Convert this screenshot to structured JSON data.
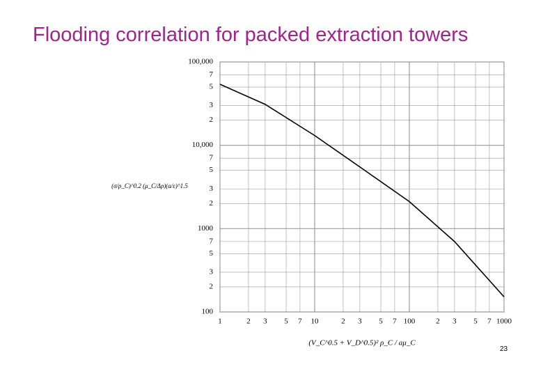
{
  "chart_data": {
    "type": "line",
    "title": "Flooding correlation for packed extraction towers",
    "slide_number": "23",
    "x_label": "(V_C^0.5 + V_D^0.5)² ρ_C / aμ_C",
    "y_label": "(σ/ρ_C)^0.2 (μ_C/Δρ)(a/ε)^1.5",
    "x_scale": "log",
    "y_scale": "log",
    "grid": true,
    "xlim": [
      1,
      1000
    ],
    "ylim": [
      100,
      100000
    ],
    "xticks": [
      1,
      2,
      3,
      5,
      7,
      10,
      {
        "value": 20,
        "label": "2"
      },
      {
        "value": 30,
        "label": "3"
      },
      {
        "value": 50,
        "label": "5"
      },
      {
        "value": 70,
        "label": "7"
      },
      100,
      {
        "value": 200,
        "label": "2"
      },
      {
        "value": 300,
        "label": "3"
      },
      {
        "value": 500,
        "label": "5"
      },
      {
        "value": 700,
        "label": "7"
      },
      1000
    ],
    "yticks": [
      100,
      {
        "value": 200,
        "label": "2"
      },
      {
        "value": 300,
        "label": "3"
      },
      {
        "value": 500,
        "label": "5"
      },
      {
        "value": 700,
        "label": "7"
      },
      1000,
      {
        "value": 2000,
        "label": "2"
      },
      {
        "value": 3000,
        "label": "3"
      },
      {
        "value": 5000,
        "label": "5"
      },
      {
        "value": 7000,
        "label": "7"
      },
      {
        "value": 10000,
        "label": "10,000"
      },
      {
        "value": 20000,
        "label": "2"
      },
      {
        "value": 30000,
        "label": "3"
      },
      {
        "value": 50000,
        "label": "5"
      },
      {
        "value": 70000,
        "label": "7"
      },
      {
        "value": 100000,
        "label": "100,000"
      }
    ],
    "color": "#000000",
    "x": [
      1,
      3,
      10,
      30,
      100,
      300,
      1000
    ],
    "values": [
      54000,
      31000,
      13100,
      5500,
      2110,
      700,
      152
    ]
  }
}
